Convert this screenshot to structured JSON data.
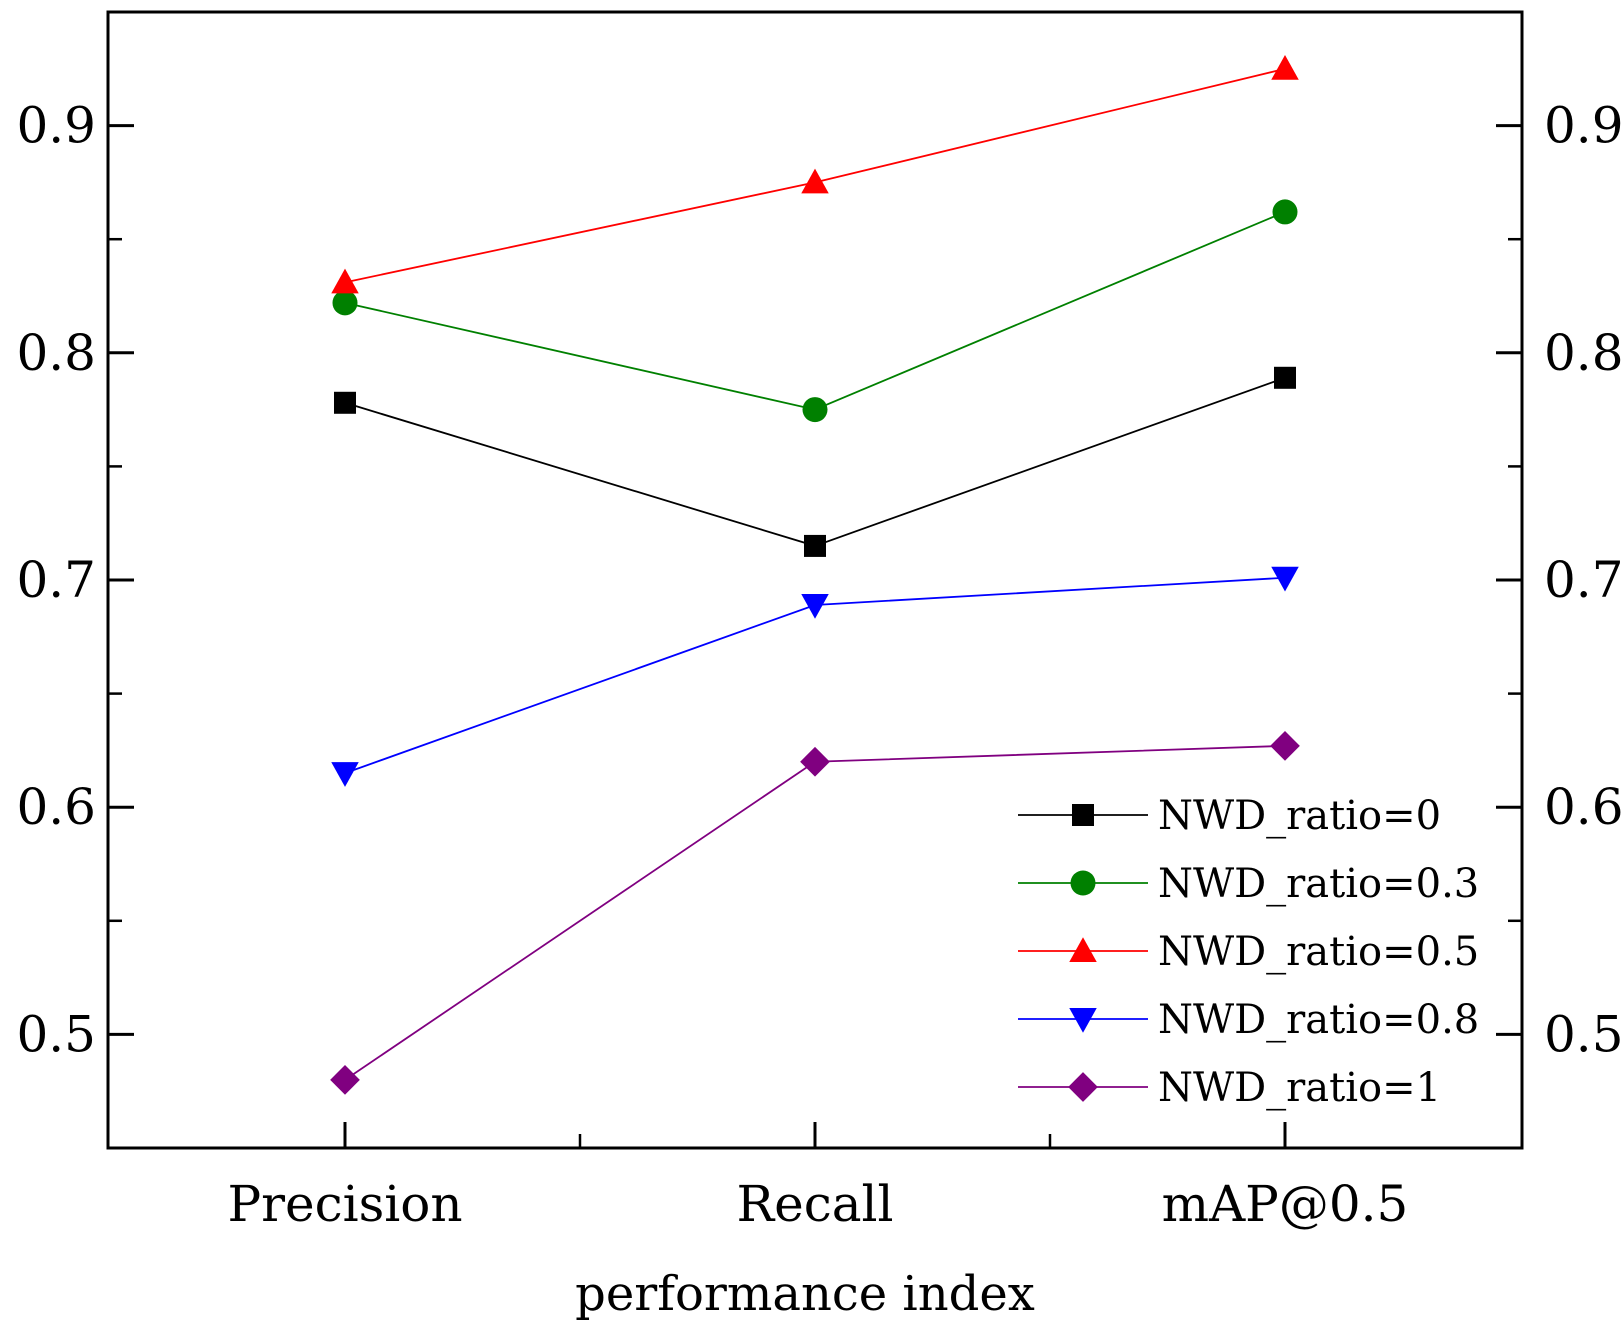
{
  "chart_data": {
    "type": "line",
    "title": "",
    "xlabel": "performance index",
    "ylabel": "",
    "categories": [
      "Precision",
      "Recall",
      "mAP@0.5"
    ],
    "ylim": [
      0.45,
      0.95
    ],
    "yticks_major": [
      "0.5",
      "0.6",
      "0.7",
      "0.8",
      "0.9"
    ],
    "yticks_minor": [
      0.55,
      0.65,
      0.75,
      0.85
    ],
    "right_axis_mirror": true,
    "legend_position": "bottom-right",
    "series": [
      {
        "name": "NWD_ratio=0",
        "color": "#000000",
        "marker": "square",
        "values": [
          0.778,
          0.715,
          0.789
        ]
      },
      {
        "name": "NWD_ratio=0.3",
        "color": "#008000",
        "marker": "circle",
        "values": [
          0.822,
          0.775,
          0.862
        ]
      },
      {
        "name": "NWD_ratio=0.5",
        "color": "#ff0000",
        "marker": "triangle-up",
        "values": [
          0.831,
          0.875,
          0.925
        ]
      },
      {
        "name": "NWD_ratio=0.8",
        "color": "#0000ff",
        "marker": "triangle-down",
        "values": [
          0.615,
          0.689,
          0.701
        ]
      },
      {
        "name": "NWD_ratio=1",
        "color": "#800080",
        "marker": "diamond",
        "values": [
          0.48,
          0.62,
          0.627
        ]
      }
    ]
  }
}
